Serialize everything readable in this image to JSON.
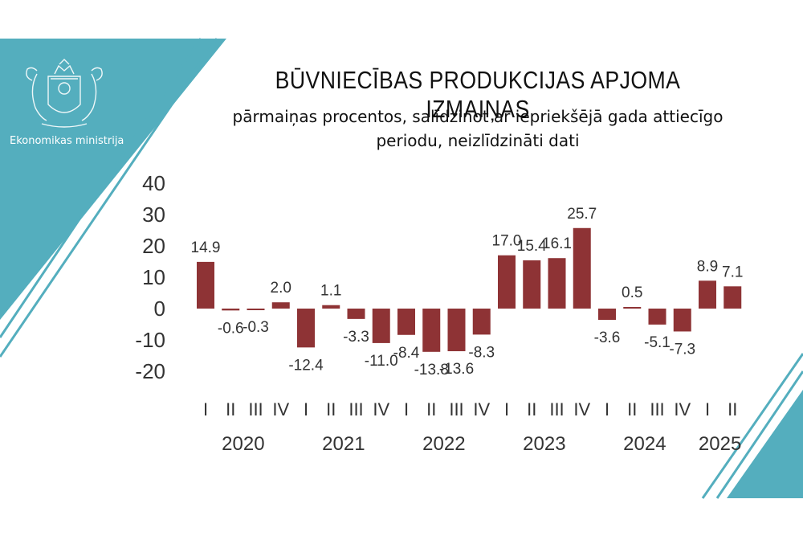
{
  "organization": "Ekonomikas ministrija",
  "logo": {
    "icon": "latvia-coat-of-arms-icon"
  },
  "colors": {
    "accent": "#54AEBE",
    "bar": "#8E3335",
    "text": "#333333"
  },
  "title": "BŪVNIECĪBAS PRODUKCIJAS APJOMA IZMAIŅAS",
  "subtitle": "pārmaiņas procentos, salīdzinot ar iepriekšējā gada attiecīgo periodu, neizlīdzināti dati",
  "chart_data": {
    "type": "bar",
    "categories": [
      "I",
      "II",
      "III",
      "IV",
      "I",
      "II",
      "III",
      "IV",
      "I",
      "II",
      "III",
      "IV",
      "I",
      "II",
      "III",
      "IV",
      "I",
      "II",
      "III",
      "IV",
      "I",
      "II"
    ],
    "years": [
      "2020",
      "2021",
      "2022",
      "2023",
      "2024",
      "2025"
    ],
    "values": [
      14.9,
      -0.6,
      -0.3,
      2.0,
      -12.4,
      1.1,
      -3.3,
      -11.0,
      -8.4,
      -13.8,
      -13.6,
      -8.3,
      17.0,
      15.4,
      16.1,
      25.7,
      -3.6,
      0.5,
      -5.1,
      -7.3,
      8.9,
      7.1
    ],
    "data_labels": [
      "14.9",
      "-0.6",
      "-0.3",
      "2.0",
      "-12.4",
      "1.1",
      "-3.3",
      "-11.0",
      "-8.4",
      "-13.8",
      "-13.6",
      "-8.3",
      "17.0",
      "15.4",
      "16.1",
      "25.7",
      "-3.6",
      "0.5",
      "-5.1",
      "-7.3",
      "8.9",
      "7.1"
    ],
    "yticks": [
      "40",
      "30",
      "20",
      "10",
      "0",
      "-10",
      "-20"
    ],
    "ytick_values": [
      40,
      30,
      20,
      10,
      0,
      -10,
      -20
    ],
    "ylim": [
      -20,
      40
    ],
    "grid": false,
    "legend": "none"
  }
}
